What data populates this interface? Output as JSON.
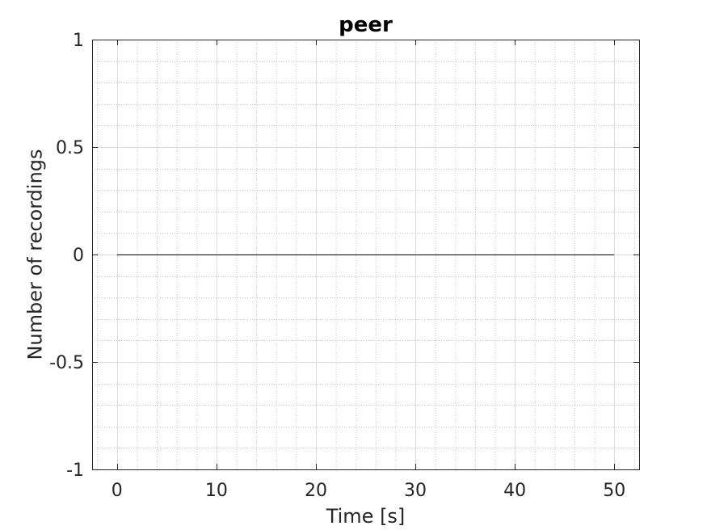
{
  "chart_data": {
    "type": "line",
    "title": "peer",
    "xlabel": "Time [s]",
    "ylabel": "Number of recordings",
    "xlim": [
      -2.5,
      52.5
    ],
    "ylim": [
      -1,
      1
    ],
    "xticks": [
      0,
      10,
      20,
      30,
      40,
      50
    ],
    "xtick_labels": [
      "0",
      "10",
      "20",
      "30",
      "40",
      "50"
    ],
    "yticks": [
      -1,
      -0.5,
      0,
      0.5,
      1
    ],
    "ytick_labels": [
      "-1",
      "-0.5",
      "0",
      "0.5",
      "1"
    ],
    "grid": "on",
    "minor_grid": "on",
    "box": "on",
    "series": [
      {
        "x": [
          0,
          50
        ],
        "y": [
          0,
          0
        ],
        "color": "#000000"
      }
    ]
  },
  "colors": {
    "axes": "#262626",
    "major_grid": "#dcdcdc",
    "minor_grid": "#c8c8c8",
    "line": "#000000"
  }
}
